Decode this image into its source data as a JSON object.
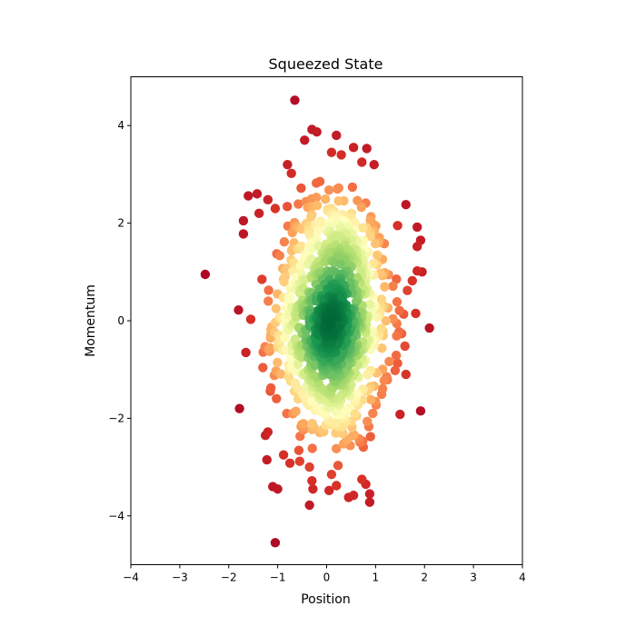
{
  "chart_data": {
    "type": "scatter",
    "title": "Squeezed State",
    "xlabel": "Position",
    "ylabel": "Momentum",
    "xlim": [
      -4,
      4
    ],
    "ylim": [
      -5,
      5
    ],
    "xticks": [
      -4,
      -3,
      -2,
      -1,
      0,
      1,
      2,
      3,
      4
    ],
    "yticks": [
      -4,
      -2,
      0,
      2,
      4
    ],
    "grid": false,
    "legend": "none",
    "colormap": [
      "#a50026",
      "#d73027",
      "#f46d43",
      "#fdae61",
      "#fee08b",
      "#ffffbf",
      "#d9ef8b",
      "#a6d96a",
      "#66bd63",
      "#1a9850",
      "#006837"
    ],
    "color_encodes": "point density",
    "n_points": 1000,
    "outlier_points": [
      {
        "x": -0.65,
        "y": 4.52
      },
      {
        "x": -0.3,
        "y": 3.92
      },
      {
        "x": -0.2,
        "y": 3.87
      },
      {
        "x": 0.2,
        "y": 3.8
      },
      {
        "x": -0.45,
        "y": 3.7
      },
      {
        "x": 0.55,
        "y": 3.55
      },
      {
        "x": 0.82,
        "y": 3.53
      },
      {
        "x": 0.3,
        "y": 3.4
      },
      {
        "x": 0.1,
        "y": 3.45
      },
      {
        "x": 0.72,
        "y": 3.25
      },
      {
        "x": 0.97,
        "y": 3.2
      },
      {
        "x": -0.8,
        "y": 3.2
      },
      {
        "x": -0.72,
        "y": 3.02
      },
      {
        "x": -1.6,
        "y": 2.56
      },
      {
        "x": -1.42,
        "y": 2.6
      },
      {
        "x": -1.2,
        "y": 2.48
      },
      {
        "x": -1.05,
        "y": 2.3
      },
      {
        "x": -1.38,
        "y": 2.2
      },
      {
        "x": -1.7,
        "y": 2.05
      },
      {
        "x": -1.7,
        "y": 1.78
      },
      {
        "x": 1.62,
        "y": 2.38
      },
      {
        "x": 1.45,
        "y": 1.95
      },
      {
        "x": 1.85,
        "y": 1.92
      },
      {
        "x": 1.92,
        "y": 1.65
      },
      {
        "x": 1.85,
        "y": 1.52
      },
      {
        "x": -2.48,
        "y": 0.95
      },
      {
        "x": 1.85,
        "y": 1.02
      },
      {
        "x": 1.95,
        "y": 1.0
      },
      {
        "x": 1.75,
        "y": 0.82
      },
      {
        "x": 1.65,
        "y": 0.62
      },
      {
        "x": -1.8,
        "y": 0.22
      },
      {
        "x": -1.55,
        "y": 0.03
      },
      {
        "x": 1.82,
        "y": 0.15
      },
      {
        "x": 2.1,
        "y": -0.15
      },
      {
        "x": -1.65,
        "y": -0.65
      },
      {
        "x": 1.6,
        "y": -0.52
      },
      {
        "x": 1.62,
        "y": -1.1
      },
      {
        "x": 1.4,
        "y": -1.02
      },
      {
        "x": -1.78,
        "y": -1.8
      },
      {
        "x": 1.92,
        "y": -1.85
      },
      {
        "x": 1.5,
        "y": -1.92
      },
      {
        "x": -1.25,
        "y": -2.35
      },
      {
        "x": -1.2,
        "y": -2.28
      },
      {
        "x": -0.88,
        "y": -2.75
      },
      {
        "x": -1.22,
        "y": -2.85
      },
      {
        "x": -0.75,
        "y": -2.92
      },
      {
        "x": -0.55,
        "y": -2.88
      },
      {
        "x": -0.35,
        "y": -3.0
      },
      {
        "x": -0.3,
        "y": -3.28
      },
      {
        "x": 0.1,
        "y": -3.15
      },
      {
        "x": 0.72,
        "y": -3.25
      },
      {
        "x": 0.8,
        "y": -3.35
      },
      {
        "x": -0.28,
        "y": -3.45
      },
      {
        "x": 0.2,
        "y": -3.38
      },
      {
        "x": 0.05,
        "y": -3.48
      },
      {
        "x": 0.45,
        "y": -3.62
      },
      {
        "x": 0.55,
        "y": -3.58
      },
      {
        "x": 0.88,
        "y": -3.55
      },
      {
        "x": 0.88,
        "y": -3.72
      },
      {
        "x": -1.1,
        "y": -3.4
      },
      {
        "x": -1.0,
        "y": -3.45
      },
      {
        "x": -0.35,
        "y": -3.78
      },
      {
        "x": -1.05,
        "y": -4.55
      }
    ]
  }
}
